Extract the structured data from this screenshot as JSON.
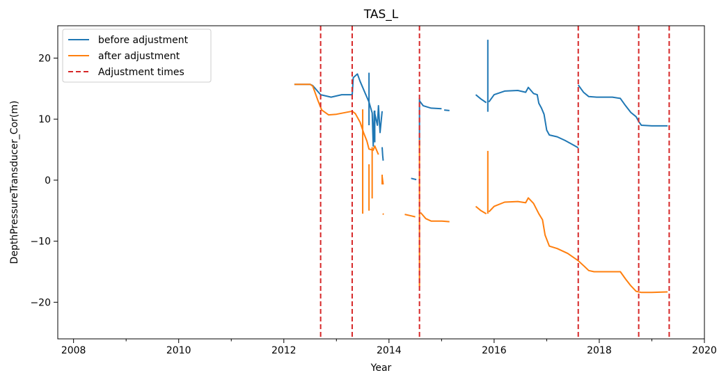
{
  "chart_data": {
    "type": "line",
    "title": "TAS_L",
    "xlabel": "Year",
    "ylabel": "DepthPressureTransducer_Cor(m)",
    "xlim": [
      2007.7,
      2020.0
    ],
    "ylim": [
      -26,
      25.3
    ],
    "x_ticks": [
      2008,
      2010,
      2012,
      2014,
      2016,
      2018,
      2020
    ],
    "x_tick_labels": [
      "2008",
      "2010",
      "2012",
      "2014",
      "2016",
      "2018",
      "2020"
    ],
    "x_minor_ticks": [
      2009,
      2011,
      2013,
      2015,
      2017,
      2019
    ],
    "y_ticks": [
      20,
      10,
      0,
      -10,
      -20
    ],
    "y_tick_labels": [
      "20",
      "10",
      "0",
      "−10",
      "−20"
    ],
    "grid": false,
    "legend_position": "upper-left",
    "series": [
      {
        "name": "before adjustment",
        "color": "#1f77b4",
        "segments": [
          [
            [
              2012.2,
              15.7
            ],
            [
              2012.5,
              15.7
            ],
            [
              2012.55,
              15.5
            ],
            [
              2012.7,
              14.0
            ],
            [
              2012.9,
              13.6
            ],
            [
              2013.1,
              14.0
            ],
            [
              2013.3,
              14.0
            ],
            [
              2013.32,
              16.8
            ],
            [
              2013.4,
              17.4
            ],
            [
              2013.45,
              16.2
            ],
            [
              2013.55,
              14.2
            ],
            [
              2013.62,
              12.8
            ],
            [
              2013.68,
              11.0
            ],
            [
              2013.7,
              5.6
            ],
            [
              2013.72,
              11.3
            ],
            [
              2013.78,
              9.0
            ],
            [
              2013.8,
              12.2
            ],
            [
              2013.83,
              7.8
            ],
            [
              2013.87,
              11.3
            ]
          ],
          [
            [
              2013.87,
              5.4
            ],
            [
              2013.88,
              4.0
            ],
            [
              2013.89,
              3.2
            ]
          ],
          [
            [
              2014.42,
              0.3
            ],
            [
              2014.52,
              0.1
            ]
          ],
          [
            [
              2014.58,
              13.0
            ],
            [
              2014.65,
              12.2
            ],
            [
              2014.8,
              11.8
            ],
            [
              2015.0,
              11.7
            ]
          ],
          [
            [
              2015.05,
              11.5
            ],
            [
              2015.15,
              11.4
            ]
          ],
          [
            [
              2015.65,
              14.0
            ],
            [
              2015.75,
              13.3
            ],
            [
              2015.85,
              12.7
            ]
          ],
          [
            [
              2015.9,
              12.8
            ],
            [
              2016.0,
              14.0
            ],
            [
              2016.2,
              14.6
            ],
            [
              2016.45,
              14.7
            ],
            [
              2016.6,
              14.4
            ],
            [
              2016.65,
              15.2
            ],
            [
              2016.75,
              14.2
            ],
            [
              2016.82,
              14.0
            ],
            [
              2016.85,
              12.6
            ],
            [
              2016.9,
              11.8
            ],
            [
              2016.95,
              10.8
            ],
            [
              2017.0,
              8.2
            ],
            [
              2017.05,
              7.4
            ],
            [
              2017.2,
              7.1
            ],
            [
              2017.35,
              6.5
            ],
            [
              2017.5,
              5.8
            ],
            [
              2017.6,
              5.3
            ]
          ],
          [
            [
              2017.6,
              15.6
            ],
            [
              2017.7,
              14.4
            ],
            [
              2017.8,
              13.7
            ],
            [
              2017.95,
              13.6
            ],
            [
              2018.25,
              13.6
            ],
            [
              2018.4,
              13.4
            ],
            [
              2018.5,
              12.2
            ],
            [
              2018.6,
              11.1
            ],
            [
              2018.7,
              10.4
            ],
            [
              2018.75,
              9.6
            ],
            [
              2018.8,
              9.0
            ],
            [
              2019.0,
              8.9
            ],
            [
              2019.3,
              8.9
            ]
          ]
        ],
        "spikes": [
          [
            2015.88,
            11.2,
            23.0
          ],
          [
            2014.58,
            5.6,
            13.4
          ],
          [
            2013.62,
            9.0,
            17.6
          ],
          [
            2013.73,
            11.4,
            6.2
          ]
        ]
      },
      {
        "name": "after adjustment",
        "color": "#ff7f0e",
        "segments": [
          [
            [
              2012.2,
              15.7
            ],
            [
              2012.5,
              15.7
            ],
            [
              2012.55,
              15.4
            ],
            [
              2012.65,
              13.0
            ],
            [
              2012.72,
              11.5
            ],
            [
              2012.85,
              10.7
            ],
            [
              2013.0,
              10.8
            ],
            [
              2013.3,
              11.3
            ],
            [
              2013.36,
              10.9
            ],
            [
              2013.45,
              9.5
            ],
            [
              2013.52,
              7.7
            ],
            [
              2013.58,
              6.4
            ],
            [
              2013.62,
              5.1
            ],
            [
              2013.7,
              4.9
            ],
            [
              2013.73,
              5.6
            ],
            [
              2013.8,
              4.2
            ]
          ],
          [
            [
              2013.87,
              0.6
            ],
            [
              2013.89,
              -0.7
            ]
          ],
          [
            [
              2013.88,
              -5.5
            ],
            [
              2013.9,
              -5.6
            ]
          ],
          [
            [
              2014.3,
              -5.6
            ],
            [
              2014.4,
              -5.8
            ],
            [
              2014.5,
              -6.0
            ]
          ],
          [
            [
              2014.6,
              -5.3
            ],
            [
              2014.7,
              -6.3
            ],
            [
              2014.8,
              -6.7
            ],
            [
              2015.0,
              -6.7
            ],
            [
              2015.15,
              -6.8
            ]
          ],
          [
            [
              2015.65,
              -4.3
            ],
            [
              2015.75,
              -5.0
            ],
            [
              2015.85,
              -5.5
            ]
          ],
          [
            [
              2015.9,
              -5.2
            ],
            [
              2016.0,
              -4.3
            ],
            [
              2016.2,
              -3.6
            ],
            [
              2016.45,
              -3.5
            ],
            [
              2016.6,
              -3.7
            ],
            [
              2016.65,
              -2.9
            ],
            [
              2016.75,
              -3.8
            ],
            [
              2016.85,
              -5.5
            ],
            [
              2016.92,
              -6.5
            ],
            [
              2016.97,
              -9.0
            ],
            [
              2017.05,
              -10.8
            ],
            [
              2017.2,
              -11.2
            ],
            [
              2017.4,
              -12.0
            ],
            [
              2017.6,
              -13.2
            ],
            [
              2017.7,
              -14.0
            ],
            [
              2017.8,
              -14.8
            ],
            [
              2017.9,
              -15.0
            ],
            [
              2018.25,
              -15.0
            ],
            [
              2018.4,
              -15.0
            ],
            [
              2018.5,
              -16.2
            ],
            [
              2018.6,
              -17.3
            ],
            [
              2018.7,
              -18.2
            ],
            [
              2018.8,
              -18.4
            ],
            [
              2019.0,
              -18.4
            ],
            [
              2019.3,
              -18.3
            ]
          ]
        ],
        "spikes": [
          [
            2013.5,
            -5.5,
            11.6
          ],
          [
            2013.68,
            -3.0,
            5.4
          ],
          [
            2013.62,
            -5.0,
            2.6
          ],
          [
            2015.88,
            -5.5,
            4.8
          ],
          [
            2014.58,
            -17.5,
            6.6
          ],
          [
            2013.87,
            -0.7,
            0.9
          ]
        ]
      }
    ],
    "adjustment_times": {
      "name": "Adjustment times",
      "color": "#d62728",
      "x": [
        2012.7,
        2013.3,
        2014.58,
        2017.6,
        2018.75,
        2019.33
      ]
    }
  }
}
